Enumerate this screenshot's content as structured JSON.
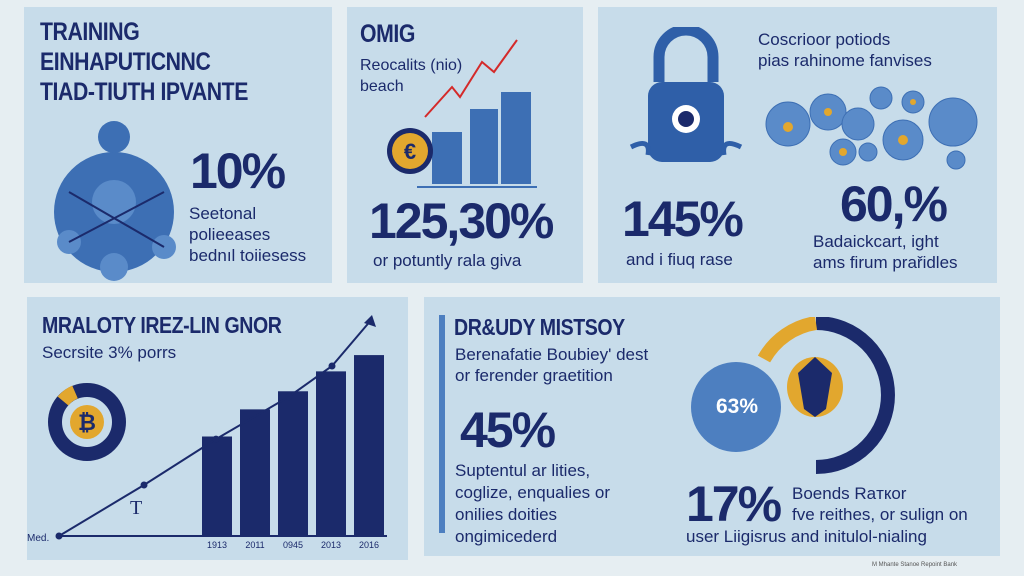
{
  "panel1": {
    "title_lines": [
      "TRAINING",
      "EINHAPUTICNNC",
      "TIAD-TIUTH IPVANTE"
    ],
    "stat": "10%",
    "desc_lines": [
      "Seetonal",
      "polieeases",
      "bednıl toiiesess"
    ]
  },
  "panel2": {
    "title": "OMIG",
    "subtitle_lines": [
      "Reocalits (nio)",
      "beach"
    ],
    "stat": "125,30%",
    "desc": "or potuntly rala giva",
    "bars": [
      0.4,
      0.55,
      0.75
    ]
  },
  "panel3": {
    "heading_lines": [
      "Coscrioor potiods",
      "pias rahinome fanvises"
    ],
    "stat_left": "145%",
    "desc_left": "and i fiuq rase",
    "stat_right": "60,%",
    "desc_right_lines": [
      "Badaickcart, ight",
      "ams firum prařidles"
    ]
  },
  "panel4": {
    "title": "MRALOTY IREZ-LIN GNOR",
    "subtitle": "Secrsite 3% porrs",
    "axis_start": "Med.",
    "mark": "T",
    "chart_data": {
      "type": "bar",
      "categories": [
        "1913",
        "2011",
        "0945",
        "2013",
        "2016"
      ],
      "values": [
        55,
        70,
        80,
        91,
        100
      ],
      "line": [
        0,
        30,
        57,
        82,
        100
      ],
      "ylim": [
        0,
        110
      ]
    }
  },
  "panel5": {
    "title": "DR&UDY MISTSOY",
    "subtitle_lines": [
      "Berenafatie Boubiey' dest",
      "or ferender graetition"
    ],
    "stat": "45%",
    "desc_lines": [
      "Suptentul ar lities,",
      "coglize, enqualies or",
      "onilies doities",
      "ongimicederd"
    ],
    "donut_stat": "63%",
    "donut_fraction": 0.63,
    "stat2": "17%",
    "desc2_lines": [
      "Boends Raткor",
      "fve reithes, or sulign on"
    ],
    "desc2_footer": "user Liigisrus and initulol-nialing"
  },
  "footer": "M Mhante Stanoe Repoint Bank",
  "colors": {
    "navy": "#1b2a6b",
    "blue": "#3d6fb4",
    "gold": "#e2a72e",
    "panel": "#c7dcea"
  }
}
